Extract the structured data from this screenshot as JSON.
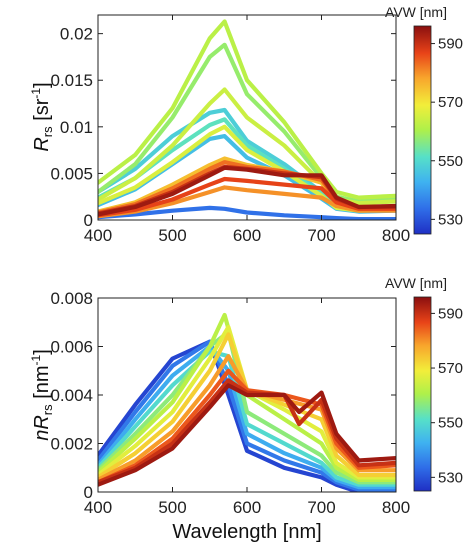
{
  "chart_data": [
    {
      "type": "line",
      "panel": "top",
      "ylabel_main": "R",
      "ylabel_sub": "rs",
      "ylabel_unit_open": " [sr",
      "ylabel_unit_exp": "-1",
      "ylabel_unit_close": "]",
      "xlabel": "",
      "xlim": [
        400,
        800
      ],
      "ylim": [
        0,
        0.022
      ],
      "xticks": [
        400,
        500,
        600,
        700,
        800
      ],
      "yticks": [
        0,
        0.005,
        0.01,
        0.015,
        0.02
      ],
      "ytick_labels": [
        "0",
        "0.005",
        "0.01",
        "0.015",
        "0.02"
      ],
      "colorbar": {
        "label": "AVW [nm]",
        "range": [
          525,
          596
        ],
        "ticks": [
          530,
          550,
          570,
          590
        ]
      },
      "color_by": "AVW [nm]",
      "series": [
        {
          "avw": 562,
          "x": [
            400,
            450,
            500,
            550,
            570,
            600,
            650,
            700,
            720,
            750,
            800
          ],
          "y": [
            0.004,
            0.007,
            0.012,
            0.0195,
            0.0213,
            0.015,
            0.0105,
            0.005,
            0.003,
            0.0024,
            0.0026
          ]
        },
        {
          "avw": 558,
          "x": [
            400,
            450,
            500,
            550,
            570,
            600,
            650,
            700,
            720,
            750,
            800
          ],
          "y": [
            0.003,
            0.006,
            0.011,
            0.0175,
            0.0188,
            0.0135,
            0.0095,
            0.0045,
            0.0025,
            0.002,
            0.0022
          ]
        },
        {
          "avw": 564,
          "x": [
            400,
            450,
            500,
            550,
            570,
            600,
            650,
            700,
            720,
            750,
            800
          ],
          "y": [
            0.0022,
            0.0045,
            0.008,
            0.0125,
            0.014,
            0.011,
            0.008,
            0.004,
            0.0022,
            0.0018,
            0.002
          ]
        },
        {
          "avw": 548,
          "x": [
            400,
            450,
            500,
            550,
            570,
            600,
            650,
            700,
            720,
            750,
            800
          ],
          "y": [
            0.003,
            0.0055,
            0.009,
            0.0115,
            0.0118,
            0.0085,
            0.006,
            0.003,
            0.0015,
            0.0012,
            0.0014
          ]
        },
        {
          "avw": 552,
          "x": [
            400,
            450,
            500,
            550,
            570,
            600,
            650,
            700,
            720,
            750,
            800
          ],
          "y": [
            0.0024,
            0.0045,
            0.0075,
            0.0102,
            0.0108,
            0.008,
            0.0055,
            0.0028,
            0.0014,
            0.001,
            0.0012
          ]
        },
        {
          "avw": 566,
          "x": [
            400,
            450,
            500,
            550,
            570,
            600,
            650,
            700,
            720,
            750,
            800
          ],
          "y": [
            0.0018,
            0.0035,
            0.0062,
            0.0092,
            0.01,
            0.0075,
            0.0052,
            0.0026,
            0.0013,
            0.001,
            0.0011
          ]
        },
        {
          "avw": 545,
          "x": [
            400,
            450,
            500,
            550,
            570,
            600,
            650,
            700,
            720,
            750,
            800
          ],
          "y": [
            0.0016,
            0.0033,
            0.006,
            0.0087,
            0.009,
            0.0067,
            0.0048,
            0.0023,
            0.0012,
            0.0009,
            0.001
          ]
        },
        {
          "avw": 575,
          "x": [
            400,
            450,
            500,
            550,
            570,
            600,
            650,
            700,
            720,
            750,
            800
          ],
          "y": [
            0.0009,
            0.0019,
            0.0038,
            0.0059,
            0.0066,
            0.0059,
            0.0052,
            0.004,
            0.002,
            0.0012,
            0.0012
          ]
        },
        {
          "avw": 583,
          "x": [
            400,
            450,
            500,
            550,
            570,
            600,
            650,
            700,
            720,
            750,
            800
          ],
          "y": [
            0.0008,
            0.0017,
            0.0034,
            0.0055,
            0.0062,
            0.0057,
            0.0052,
            0.0043,
            0.0022,
            0.0013,
            0.0013
          ]
        },
        {
          "avw": 590,
          "x": [
            400,
            450,
            500,
            550,
            570,
            600,
            650,
            700,
            720,
            750,
            800
          ],
          "y": [
            0.0007,
            0.0015,
            0.003,
            0.005,
            0.0057,
            0.0055,
            0.005,
            0.0046,
            0.0023,
            0.0014,
            0.0014
          ]
        },
        {
          "avw": 594,
          "x": [
            400,
            450,
            500,
            550,
            570,
            600,
            650,
            700,
            720,
            750,
            800
          ],
          "y": [
            0.0006,
            0.0014,
            0.0028,
            0.0048,
            0.0056,
            0.0054,
            0.0048,
            0.0048,
            0.0024,
            0.0014,
            0.0015
          ]
        },
        {
          "avw": 587,
          "x": [
            400,
            450,
            500,
            550,
            570,
            600,
            650,
            700,
            720,
            750,
            800
          ],
          "y": [
            0.0005,
            0.0011,
            0.0022,
            0.0038,
            0.0044,
            0.0042,
            0.0038,
            0.0034,
            0.0019,
            0.0012,
            0.0012
          ]
        },
        {
          "avw": 580,
          "x": [
            400,
            450,
            500,
            550,
            570,
            600,
            650,
            700,
            720,
            750,
            800
          ],
          "y": [
            0.0004,
            0.0009,
            0.0018,
            0.003,
            0.0035,
            0.0032,
            0.0028,
            0.0024,
            0.0015,
            0.001,
            0.001
          ]
        },
        {
          "avw": 534,
          "x": [
            400,
            450,
            500,
            550,
            570,
            600,
            650,
            700,
            720,
            750,
            800
          ],
          "y": [
            0.0003,
            0.0006,
            0.001,
            0.0013,
            0.0012,
            0.0008,
            0.0005,
            0.0003,
            0.0002,
            0.0001,
            0.0001
          ]
        }
      ]
    },
    {
      "type": "line",
      "panel": "bottom",
      "ylabel_main": "nR",
      "ylabel_sub": "rs",
      "ylabel_unit_open": " [nm",
      "ylabel_unit_exp": "-1",
      "ylabel_unit_close": "]",
      "xlabel": "Wavelength [nm]",
      "xlim": [
        400,
        800
      ],
      "ylim": [
        0,
        0.008
      ],
      "xticks": [
        400,
        500,
        600,
        700,
        800
      ],
      "yticks": [
        0,
        0.002,
        0.004,
        0.006,
        0.008
      ],
      "ytick_labels": [
        "0",
        "0.002",
        "0.004",
        "0.006",
        "0.008"
      ],
      "colorbar": {
        "label": "AVW [nm]",
        "range": [
          525,
          596
        ],
        "ticks": [
          530,
          550,
          570,
          590
        ]
      },
      "color_by": "AVW [nm]",
      "series": [
        {
          "avw": 528,
          "x": [
            400,
            450,
            500,
            550,
            575,
            600,
            650,
            700,
            720,
            750,
            800
          ],
          "y": [
            0.0015,
            0.0036,
            0.0055,
            0.0062,
            0.004,
            0.0017,
            0.001,
            0.0006,
            0.0003,
            0.0,
            0.0
          ]
        },
        {
          "avw": 535,
          "x": [
            400,
            450,
            500,
            550,
            575,
            600,
            650,
            700,
            720,
            750,
            800
          ],
          "y": [
            0.0013,
            0.0033,
            0.0052,
            0.0062,
            0.0044,
            0.002,
            0.0013,
            0.0008,
            0.0004,
            0.0001,
            0.0001
          ]
        },
        {
          "avw": 542,
          "x": [
            400,
            450,
            500,
            550,
            575,
            600,
            650,
            700,
            720,
            750,
            800
          ],
          "y": [
            0.0011,
            0.003,
            0.0048,
            0.006,
            0.005,
            0.0024,
            0.0016,
            0.001,
            0.0005,
            0.0002,
            0.0002
          ]
        },
        {
          "avw": 550,
          "x": [
            400,
            450,
            500,
            550,
            575,
            600,
            650,
            700,
            720,
            750,
            800
          ],
          "y": [
            0.001,
            0.0027,
            0.0044,
            0.0058,
            0.0056,
            0.0028,
            0.002,
            0.0012,
            0.0006,
            0.0003,
            0.0003
          ]
        },
        {
          "avw": 557,
          "x": [
            400,
            450,
            500,
            550,
            575,
            600,
            650,
            700,
            720,
            750,
            800
          ],
          "y": [
            0.0009,
            0.0024,
            0.004,
            0.006,
            0.0066,
            0.0033,
            0.0024,
            0.0015,
            0.0008,
            0.0004,
            0.0004
          ]
        },
        {
          "avw": 562,
          "x": [
            400,
            450,
            500,
            550,
            570,
            600,
            650,
            700,
            720,
            750,
            800
          ],
          "y": [
            0.0008,
            0.0022,
            0.0037,
            0.006,
            0.0073,
            0.004,
            0.003,
            0.002,
            0.001,
            0.0005,
            0.0005
          ]
        },
        {
          "avw": 567,
          "x": [
            400,
            450,
            500,
            550,
            575,
            600,
            650,
            700,
            720,
            750,
            800
          ],
          "y": [
            0.0007,
            0.0019,
            0.0033,
            0.0055,
            0.0068,
            0.0042,
            0.0034,
            0.0025,
            0.0012,
            0.0006,
            0.0006
          ]
        },
        {
          "avw": 573,
          "x": [
            400,
            450,
            500,
            550,
            575,
            600,
            650,
            700,
            720,
            750,
            800
          ],
          "y": [
            0.0006,
            0.0016,
            0.0029,
            0.005,
            0.0065,
            0.0042,
            0.0036,
            0.003,
            0.0015,
            0.0007,
            0.0007
          ]
        },
        {
          "avw": 579,
          "x": [
            400,
            450,
            500,
            550,
            575,
            600,
            650,
            700,
            720,
            750,
            800
          ],
          "y": [
            0.0005,
            0.0013,
            0.0025,
            0.0044,
            0.0056,
            0.0042,
            0.0038,
            0.0034,
            0.0018,
            0.0009,
            0.0009
          ]
        },
        {
          "avw": 585,
          "x": [
            400,
            450,
            500,
            550,
            575,
            600,
            650,
            700,
            720,
            750,
            800
          ],
          "y": [
            0.0004,
            0.0011,
            0.0022,
            0.004,
            0.005,
            0.0042,
            0.004,
            0.0036,
            0.002,
            0.001,
            0.0011
          ]
        },
        {
          "avw": 590,
          "x": [
            400,
            450,
            500,
            550,
            575,
            600,
            650,
            670,
            700,
            720,
            750,
            800
          ],
          "y": [
            0.0004,
            0.001,
            0.002,
            0.0037,
            0.0046,
            0.0041,
            0.004,
            0.0028,
            0.0038,
            0.0022,
            0.0011,
            0.0012
          ]
        },
        {
          "avw": 594,
          "x": [
            400,
            450,
            500,
            550,
            575,
            600,
            650,
            670,
            700,
            720,
            750,
            800
          ],
          "y": [
            0.0003,
            0.0009,
            0.0018,
            0.0035,
            0.0044,
            0.004,
            0.004,
            0.0033,
            0.0041,
            0.0024,
            0.0013,
            0.0014
          ]
        }
      ]
    }
  ]
}
